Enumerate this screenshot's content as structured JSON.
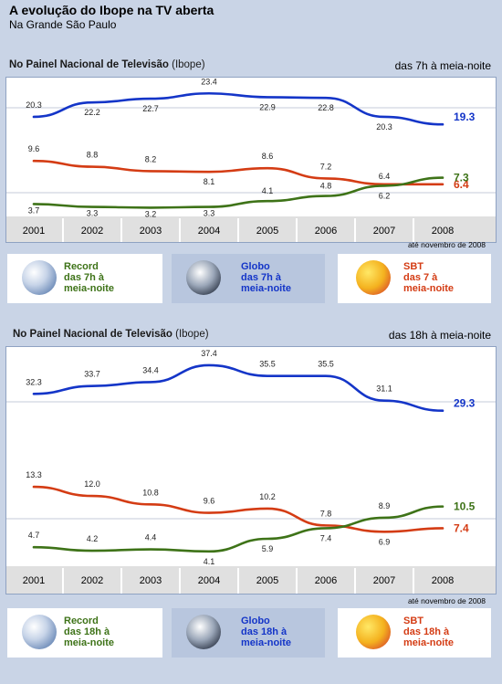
{
  "page": {
    "title": "A evolução do Ibope na TV aberta",
    "subtitle": "Na Grande São Paulo"
  },
  "panels": [
    {
      "heading": "No Painel Nacional de Televisão",
      "heading_suffix": "(Ibope)",
      "time_range": "das 7h  à meia-noite",
      "note": "até novembro de 2008",
      "legend": [
        {
          "channel": "Record",
          "label_lines": [
            "Record",
            "das 7h à",
            "meia-noite"
          ],
          "color": "#3e7318",
          "logo": "record-logo-icon"
        },
        {
          "channel": "Globo",
          "label_lines": [
            "Globo",
            "das 7h à",
            "meia-noite"
          ],
          "color": "#1435c8",
          "logo": "globo-logo-icon"
        },
        {
          "channel": "SBT",
          "label_lines": [
            "SBT",
            "das 7 à",
            "meia-noite"
          ],
          "color": "#d43c14",
          "logo": "sbt-logo-icon"
        }
      ]
    },
    {
      "heading": "No Painel Nacional de Televisão",
      "heading_suffix": "(Ibope)",
      "time_range": "das 18h  à meia-noite",
      "note": "até novembro de 2008",
      "legend": [
        {
          "channel": "Record",
          "label_lines": [
            "Record",
            "das 18h à",
            "meia-noite"
          ],
          "color": "#3e7318",
          "logo": "record-logo-icon"
        },
        {
          "channel": "Globo",
          "label_lines": [
            "Globo",
            "das 18h à",
            "meia-noite"
          ],
          "color": "#1435c8",
          "logo": "globo-logo-icon"
        },
        {
          "channel": "SBT",
          "label_lines": [
            "SBT",
            "das 18h à",
            "meia-noite"
          ],
          "color": "#d43c14",
          "logo": "sbt-logo-icon"
        }
      ]
    }
  ],
  "chart_data": [
    {
      "type": "line",
      "x": [
        "2001",
        "2002",
        "2003",
        "2004",
        "2005",
        "2006",
        "2007",
        "2008"
      ],
      "series": [
        {
          "name": "Globo",
          "color": "#1435c8",
          "values": [
            20.3,
            22.2,
            22.7,
            23.4,
            22.9,
            22.8,
            20.3,
            19.3
          ]
        },
        {
          "name": "SBT",
          "color": "#d43c14",
          "values": [
            9.6,
            8.8,
            8.2,
            8.1,
            8.6,
            7.2,
            6.4,
            6.4
          ]
        },
        {
          "name": "Record",
          "color": "#3e7318",
          "values": [
            3.7,
            3.3,
            3.2,
            3.3,
            4.1,
            4.8,
            6.2,
            7.3
          ]
        }
      ],
      "title": "",
      "xlabel": "",
      "ylabel": "",
      "grid": true,
      "axis_break": true
    },
    {
      "type": "line",
      "x": [
        "2001",
        "2002",
        "2003",
        "2004",
        "2005",
        "2006",
        "2007",
        "2008"
      ],
      "series": [
        {
          "name": "Globo",
          "color": "#1435c8",
          "values": [
            32.3,
            33.7,
            34.4,
            37.4,
            35.5,
            35.5,
            31.1,
            29.3
          ]
        },
        {
          "name": "SBT",
          "color": "#d43c14",
          "values": [
            13.3,
            12.0,
            10.8,
            9.6,
            10.2,
            7.8,
            6.9,
            7.4
          ]
        },
        {
          "name": "Record",
          "color": "#3e7318",
          "values": [
            4.7,
            4.2,
            4.4,
            4.1,
            5.9,
            7.4,
            8.9,
            10.5
          ]
        }
      ],
      "title": "",
      "xlabel": "",
      "ylabel": "",
      "grid": true,
      "axis_break": true
    }
  ]
}
